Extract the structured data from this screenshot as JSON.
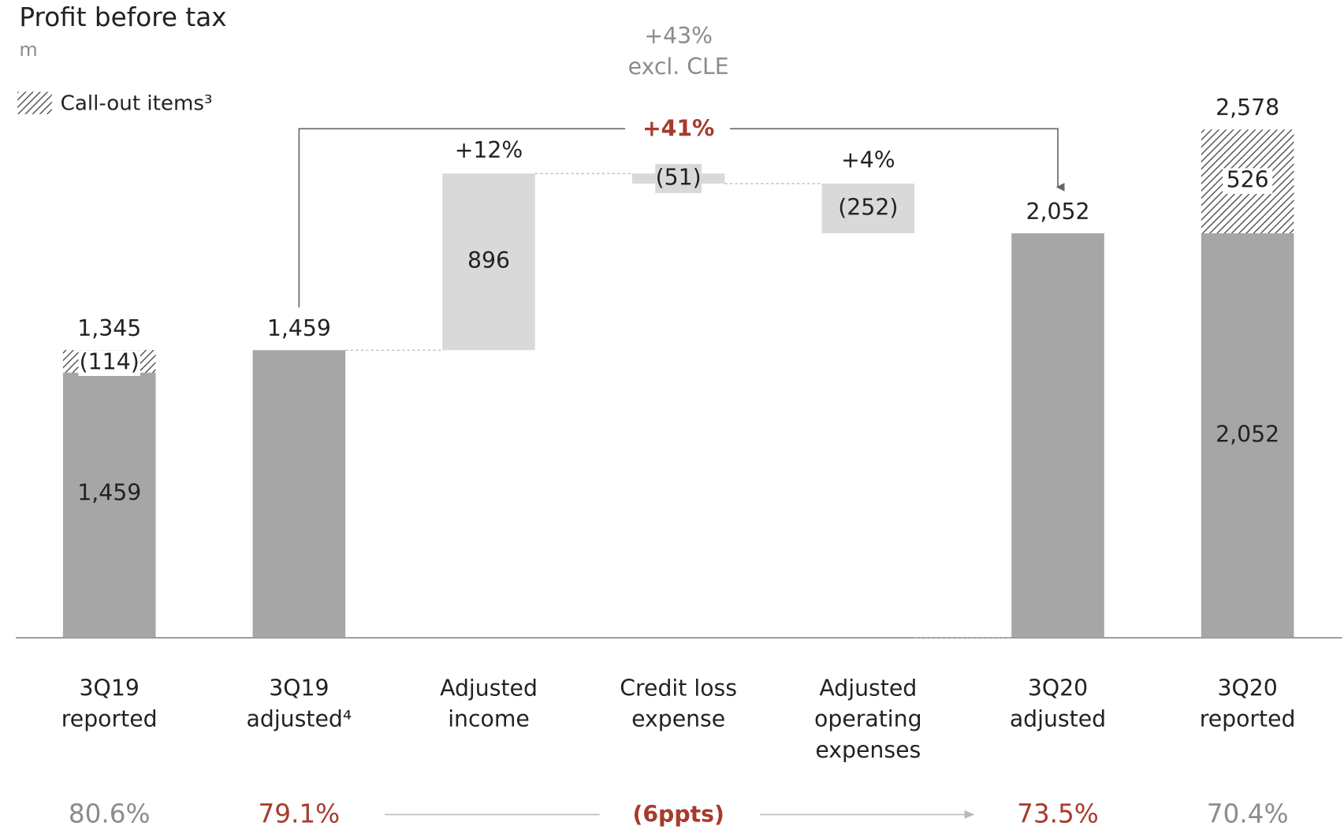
{
  "chart_data": {
    "type": "waterfall",
    "title": "Profit before tax",
    "subtitle": "m",
    "legend": "Call-out items³",
    "categories": [
      [
        "3Q19",
        "reported"
      ],
      [
        "3Q19",
        "adjusted⁴"
      ],
      [
        "Adjusted",
        "income"
      ],
      [
        "Credit loss",
        "expense"
      ],
      [
        "Adjusted",
        "operating",
        "expenses"
      ],
      [
        "3Q20",
        "adjusted"
      ],
      [
        "3Q20",
        "reported"
      ]
    ],
    "kinds": [
      "total",
      "total",
      "delta",
      "delta",
      "delta",
      "total",
      "total"
    ],
    "values": [
      1459,
      1459,
      896,
      -51,
      -252,
      2052,
      2052
    ],
    "value_labels": [
      "1,459",
      "1,459",
      "896",
      "(51)",
      "(252)",
      "2,052",
      "2,052"
    ],
    "label_positions": [
      "inside",
      "above",
      "inside",
      "inside",
      "inside",
      "above",
      "inside"
    ],
    "callout_values": [
      -114,
      null,
      null,
      null,
      null,
      null,
      526
    ],
    "callout_labels": [
      "(114)",
      null,
      null,
      null,
      null,
      null,
      "526"
    ],
    "totals": [
      1345,
      null,
      null,
      null,
      null,
      null,
      2578
    ],
    "total_labels": [
      "1,345",
      null,
      null,
      null,
      null,
      null,
      "2,578"
    ],
    "growth_labels": [
      null,
      null,
      "+12%",
      null,
      "+4%",
      null,
      null
    ],
    "annotation": "+41%",
    "annotation_note": [
      "+43%",
      "excl. CLE"
    ],
    "ratios": [
      80.6,
      79.1,
      null,
      null,
      null,
      73.5,
      70.4
    ],
    "ratio_labels": [
      "80.6%",
      "79.1%",
      null,
      null,
      null,
      "73.5%",
      "70.4%"
    ],
    "ratio_colors": [
      "#8c8c8c",
      "#a83a2c",
      null,
      null,
      null,
      "#a83a2c",
      "#8c8c8c"
    ],
    "ratio_change": {
      "value": -6,
      "label": "(6ppts)"
    },
    "colors": {
      "total": "#a6a6a6",
      "delta": "#d9d9d9",
      "highlight": "#a83a2c",
      "note": "#8c8c8c"
    },
    "ylim": [
      -200,
      2900
    ]
  }
}
